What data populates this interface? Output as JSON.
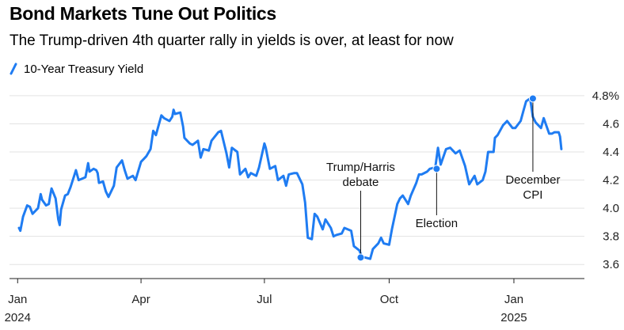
{
  "chart_data": {
    "type": "line",
    "title": "Bond Markets Tune Out Politics",
    "subtitle": "The Trump-driven 4th quarter rally in yields is over, at least for now",
    "series": [
      {
        "name": "10-Year Treasury Yield",
        "color": "#1f7cf2",
        "points": [
          [
            "2024-01-02",
            3.86
          ],
          [
            "2024-01-03",
            3.84
          ],
          [
            "2024-01-05",
            3.94
          ],
          [
            "2024-01-08",
            4.02
          ],
          [
            "2024-01-10",
            4.01
          ],
          [
            "2024-01-12",
            3.96
          ],
          [
            "2024-01-16",
            4.0
          ],
          [
            "2024-01-18",
            4.1
          ],
          [
            "2024-01-19",
            4.06
          ],
          [
            "2024-01-22",
            4.02
          ],
          [
            "2024-01-24",
            4.03
          ],
          [
            "2024-01-25",
            4.09
          ],
          [
            "2024-01-26",
            4.14
          ],
          [
            "2024-01-29",
            4.07
          ],
          [
            "2024-01-31",
            3.92
          ],
          [
            "2024-02-01",
            3.88
          ],
          [
            "2024-02-02",
            3.99
          ],
          [
            "2024-02-05",
            4.09
          ],
          [
            "2024-02-07",
            4.1
          ],
          [
            "2024-02-09",
            4.15
          ],
          [
            "2024-02-13",
            4.27
          ],
          [
            "2024-02-15",
            4.2
          ],
          [
            "2024-02-20",
            4.22
          ],
          [
            "2024-02-22",
            4.32
          ],
          [
            "2024-02-23",
            4.26
          ],
          [
            "2024-02-26",
            4.28
          ],
          [
            "2024-02-28",
            4.27
          ],
          [
            "2024-02-29",
            4.25
          ],
          [
            "2024-03-01",
            4.18
          ],
          [
            "2024-03-04",
            4.19
          ],
          [
            "2024-03-06",
            4.12
          ],
          [
            "2024-03-08",
            4.08
          ],
          [
            "2024-03-12",
            4.16
          ],
          [
            "2024-03-14",
            4.29
          ],
          [
            "2024-03-18",
            4.34
          ],
          [
            "2024-03-20",
            4.27
          ],
          [
            "2024-03-22",
            4.21
          ],
          [
            "2024-03-26",
            4.23
          ],
          [
            "2024-03-28",
            4.2
          ],
          [
            "2024-04-01",
            4.33
          ],
          [
            "2024-04-03",
            4.35
          ],
          [
            "2024-04-05",
            4.37
          ],
          [
            "2024-04-08",
            4.42
          ],
          [
            "2024-04-10",
            4.55
          ],
          [
            "2024-04-12",
            4.52
          ],
          [
            "2024-04-16",
            4.66
          ],
          [
            "2024-04-18",
            4.64
          ],
          [
            "2024-04-22",
            4.62
          ],
          [
            "2024-04-24",
            4.65
          ],
          [
            "2024-04-25",
            4.7
          ],
          [
            "2024-04-26",
            4.67
          ],
          [
            "2024-04-30",
            4.68
          ],
          [
            "2024-05-02",
            4.58
          ],
          [
            "2024-05-03",
            4.5
          ],
          [
            "2024-05-07",
            4.46
          ],
          [
            "2024-05-09",
            4.45
          ],
          [
            "2024-05-13",
            4.48
          ],
          [
            "2024-05-15",
            4.36
          ],
          [
            "2024-05-17",
            4.42
          ],
          [
            "2024-05-21",
            4.41
          ],
          [
            "2024-05-23",
            4.48
          ],
          [
            "2024-05-28",
            4.54
          ],
          [
            "2024-05-30",
            4.55
          ],
          [
            "2024-05-31",
            4.51
          ],
          [
            "2024-06-03",
            4.39
          ],
          [
            "2024-06-05",
            4.29
          ],
          [
            "2024-06-07",
            4.43
          ],
          [
            "2024-06-11",
            4.4
          ],
          [
            "2024-06-13",
            4.24
          ],
          [
            "2024-06-17",
            4.28
          ],
          [
            "2024-06-19",
            4.22
          ],
          [
            "2024-06-21",
            4.25
          ],
          [
            "2024-06-25",
            4.23
          ],
          [
            "2024-06-27",
            4.29
          ],
          [
            "2024-07-01",
            4.46
          ],
          [
            "2024-07-02",
            4.43
          ],
          [
            "2024-07-05",
            4.28
          ],
          [
            "2024-07-09",
            4.3
          ],
          [
            "2024-07-11",
            4.2
          ],
          [
            "2024-07-15",
            4.23
          ],
          [
            "2024-07-17",
            4.16
          ],
          [
            "2024-07-19",
            4.24
          ],
          [
            "2024-07-23",
            4.25
          ],
          [
            "2024-07-25",
            4.25
          ],
          [
            "2024-07-29",
            4.17
          ],
          [
            "2024-07-31",
            4.04
          ],
          [
            "2024-08-02",
            3.79
          ],
          [
            "2024-08-05",
            3.78
          ],
          [
            "2024-08-07",
            3.96
          ],
          [
            "2024-08-09",
            3.94
          ],
          [
            "2024-08-13",
            3.85
          ],
          [
            "2024-08-15",
            3.92
          ],
          [
            "2024-08-19",
            3.86
          ],
          [
            "2024-08-21",
            3.8
          ],
          [
            "2024-08-23",
            3.81
          ],
          [
            "2024-08-27",
            3.82
          ],
          [
            "2024-08-29",
            3.86
          ],
          [
            "2024-09-03",
            3.84
          ],
          [
            "2024-09-05",
            3.73
          ],
          [
            "2024-09-09",
            3.7
          ],
          [
            "2024-09-11",
            3.65
          ],
          [
            "2024-09-13",
            3.65
          ],
          [
            "2024-09-17",
            3.64
          ],
          [
            "2024-09-19",
            3.71
          ],
          [
            "2024-09-23",
            3.75
          ],
          [
            "2024-09-25",
            3.79
          ],
          [
            "2024-09-27",
            3.75
          ],
          [
            "2024-10-01",
            3.74
          ],
          [
            "2024-10-03",
            3.85
          ],
          [
            "2024-10-07",
            4.03
          ],
          [
            "2024-10-09",
            4.07
          ],
          [
            "2024-10-11",
            4.09
          ],
          [
            "2024-10-15",
            4.03
          ],
          [
            "2024-10-17",
            4.09
          ],
          [
            "2024-10-21",
            4.18
          ],
          [
            "2024-10-23",
            4.24
          ],
          [
            "2024-10-25",
            4.24
          ],
          [
            "2024-10-29",
            4.26
          ],
          [
            "2024-10-31",
            4.28
          ],
          [
            "2024-11-04",
            4.29
          ],
          [
            "2024-11-06",
            4.43
          ],
          [
            "2024-11-08",
            4.31
          ],
          [
            "2024-11-12",
            4.42
          ],
          [
            "2024-11-15",
            4.43
          ],
          [
            "2024-11-19",
            4.39
          ],
          [
            "2024-11-22",
            4.41
          ],
          [
            "2024-11-26",
            4.3
          ],
          [
            "2024-11-29",
            4.17
          ],
          [
            "2024-12-03",
            4.23
          ],
          [
            "2024-12-05",
            4.17
          ],
          [
            "2024-12-09",
            4.2
          ],
          [
            "2024-12-11",
            4.26
          ],
          [
            "2024-12-13",
            4.4
          ],
          [
            "2024-12-17",
            4.4
          ],
          [
            "2024-12-18",
            4.5
          ],
          [
            "2024-12-20",
            4.52
          ],
          [
            "2024-12-24",
            4.59
          ],
          [
            "2024-12-27",
            4.62
          ],
          [
            "2024-12-31",
            4.57
          ],
          [
            "2025-01-02",
            4.57
          ],
          [
            "2025-01-06",
            4.62
          ],
          [
            "2025-01-08",
            4.69
          ],
          [
            "2025-01-10",
            4.76
          ],
          [
            "2025-01-13",
            4.78
          ],
          [
            "2025-01-15",
            4.65
          ],
          [
            "2025-01-17",
            4.61
          ],
          [
            "2025-01-21",
            4.57
          ],
          [
            "2025-01-23",
            4.64
          ],
          [
            "2025-01-27",
            4.53
          ],
          [
            "2025-01-29",
            4.53
          ],
          [
            "2025-01-31",
            4.54
          ],
          [
            "2025-02-03",
            4.54
          ],
          [
            "2025-02-04",
            4.51
          ],
          [
            "2025-02-05",
            4.42
          ]
        ]
      }
    ],
    "yaxis": {
      "ticks": [
        3.6,
        3.8,
        4.0,
        4.2,
        4.4,
        4.6,
        4.8
      ],
      "unit_suffix": "%",
      "ylim": [
        3.5,
        4.85
      ],
      "gridlines": true,
      "position": "right"
    },
    "xaxis": {
      "range": [
        "2023-12-26",
        "2025-02-22"
      ],
      "ticks": [
        {
          "date": "2024-01-01",
          "label": "Jan",
          "year": "2024"
        },
        {
          "date": "2024-04-01",
          "label": "Apr",
          "year": ""
        },
        {
          "date": "2024-07-01",
          "label": "Jul",
          "year": ""
        },
        {
          "date": "2024-10-01",
          "label": "Oct",
          "year": ""
        },
        {
          "date": "2025-01-01",
          "label": "Jan",
          "year": "2025"
        }
      ]
    },
    "legend": {
      "position": "top-left"
    },
    "annotations": [
      {
        "lines": [
          "Trump/Harris",
          "debate"
        ],
        "date": "2024-09-10",
        "value": 3.65,
        "placement": "above"
      },
      {
        "lines": [
          "Election"
        ],
        "date": "2024-11-05",
        "value": 4.28,
        "placement": "below"
      },
      {
        "lines": [
          "December",
          "CPI"
        ],
        "date": "2025-01-15",
        "value": 4.78,
        "placement": "below"
      }
    ]
  }
}
